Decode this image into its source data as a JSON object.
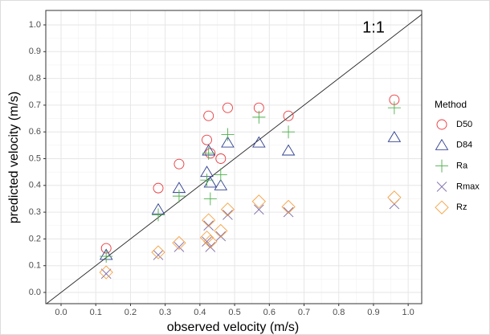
{
  "chart_data": {
    "type": "scatter",
    "x_label": "observed velocity (m/s)",
    "y_label": "predicted velocity (m/s)",
    "annotation": "1:1",
    "legend_title": "Method",
    "legend_position": "right",
    "grid": true,
    "x": [
      0.13,
      0.28,
      0.34,
      0.42,
      0.425,
      0.43,
      0.46,
      0.48,
      0.57,
      0.655,
      0.96
    ],
    "series": [
      {
        "name": "D50",
        "color": "#e8383d",
        "marker": "circle",
        "values": [
          0.165,
          0.39,
          0.48,
          0.57,
          0.66,
          0.52,
          0.5,
          0.69,
          0.69,
          0.66,
          0.72
        ]
      },
      {
        "name": "D84",
        "color": "#2e3d8f",
        "marker": "triangle",
        "values": [
          0.14,
          0.31,
          0.39,
          0.45,
          0.53,
          0.41,
          0.4,
          0.56,
          0.56,
          0.53,
          0.58
        ]
      },
      {
        "name": "Ra",
        "color": "#4daf4a",
        "marker": "plus",
        "values": [
          0.135,
          0.29,
          0.36,
          0.42,
          0.52,
          0.35,
          0.44,
          0.59,
          0.655,
          0.6,
          0.69
        ]
      },
      {
        "name": "Rmax",
        "color": "#7b68a6",
        "marker": "cross",
        "values": [
          0.07,
          0.14,
          0.17,
          0.19,
          0.25,
          0.17,
          0.21,
          0.29,
          0.31,
          0.3,
          0.33
        ]
      },
      {
        "name": "Rz",
        "color": "#f5a142",
        "marker": "diamond",
        "values": [
          0.075,
          0.15,
          0.185,
          0.205,
          0.27,
          0.19,
          0.23,
          0.31,
          0.34,
          0.32,
          0.355
        ]
      }
    ],
    "xlim": [
      -0.044,
      1.039
    ],
    "ylim": [
      -0.042,
      1.054
    ],
    "xticks": [
      {
        "value": 0,
        "label": "0.0"
      },
      0.1,
      0.2,
      0.3,
      0.4,
      0.5,
      0.6,
      0.7,
      0.8,
      0.9,
      {
        "value": 1,
        "label": "1.0"
      }
    ],
    "yticks": [
      {
        "value": 0,
        "label": "0.0"
      },
      0.1,
      0.2,
      0.3,
      0.4,
      0.5,
      0.6,
      0.7,
      0.8,
      0.9,
      {
        "value": 1,
        "label": "1.0"
      }
    ],
    "xminorticks": [
      0.05,
      0.15,
      0.25,
      0.35,
      0.45,
      0.55,
      0.65,
      0.75,
      0.85,
      0.95
    ],
    "yminorticks": [
      0.05,
      0.15,
      0.25,
      0.35,
      0.45,
      0.55,
      0.65,
      0.75,
      0.85,
      0.95
    ]
  }
}
